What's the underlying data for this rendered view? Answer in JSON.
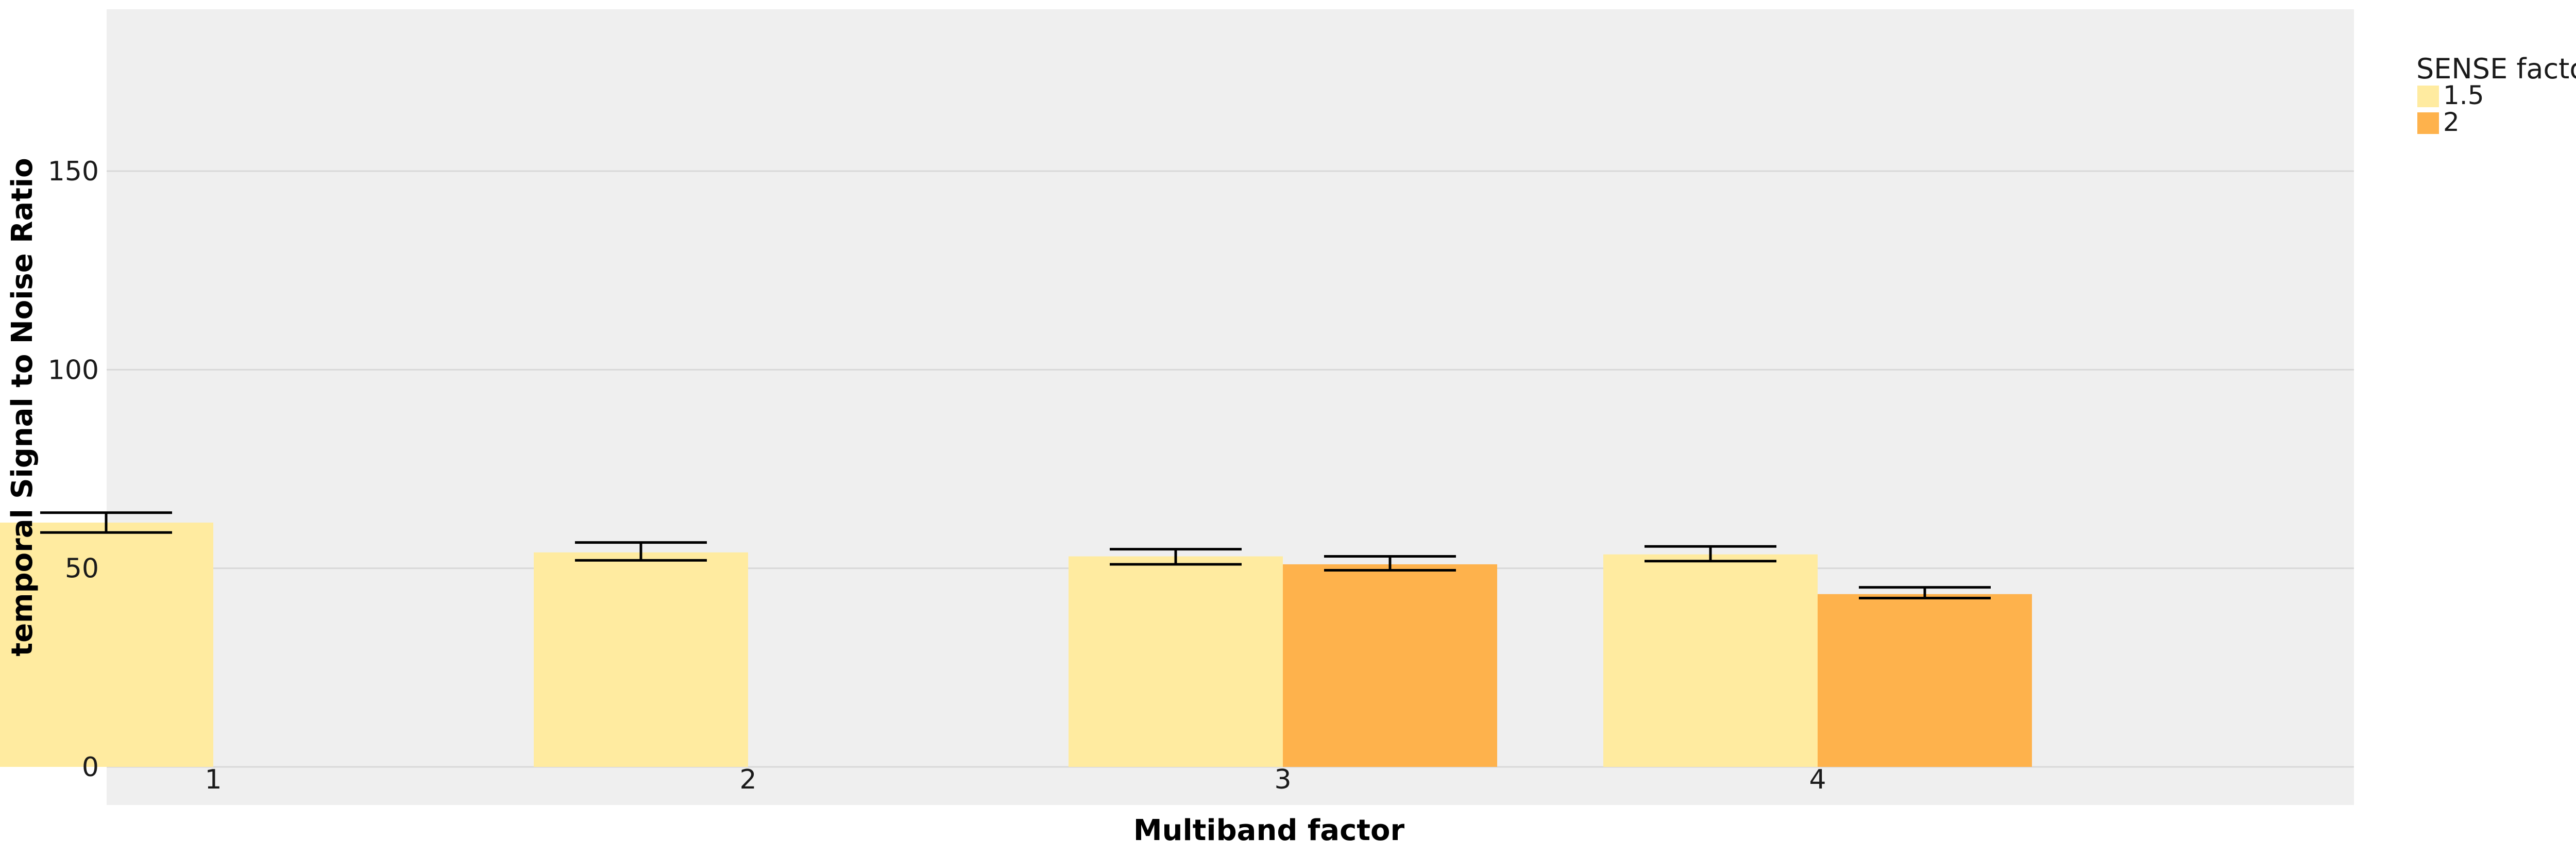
{
  "chart_data": {
    "type": "bar",
    "xlabel": "Multiband factor",
    "ylabel": "temporal Signal to Noise Ratio",
    "categories": [
      "1",
      "2",
      "3",
      "4"
    ],
    "y_ticks": [
      "0",
      "50",
      "100",
      "150"
    ],
    "ylim": [
      0,
      190
    ],
    "grid": true,
    "legend": {
      "title": "SENSE factor",
      "placement": "top-right, outside plot"
    },
    "series": [
      {
        "name": "1.5",
        "color": "#FFEBA0",
        "values": [
          61.5,
          54,
          53,
          53.5
        ],
        "error_low": [
          59,
          52,
          51,
          51.8
        ],
        "error_high": [
          64,
          56.5,
          54.8,
          55.5
        ]
      },
      {
        "name": "2",
        "color": "#FEB24C",
        "values": [
          null,
          null,
          51,
          43.5
        ],
        "error_low": [
          null,
          null,
          49.5,
          42.5
        ],
        "error_high": [
          null,
          null,
          53,
          45.2
        ]
      }
    ],
    "colors": {
      "panel_background": "#EFEFEF",
      "gridline": "#D8D8D8",
      "error_bar": "#000000"
    }
  }
}
